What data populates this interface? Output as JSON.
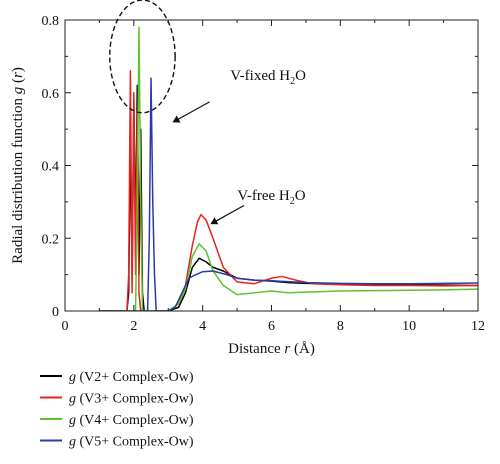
{
  "chart_data": {
    "type": "line",
    "xlabel_prefix": "Distance ",
    "xlabel_var": "r",
    "xlabel_unit": " (Å)",
    "ylabel_prefix": "Radial distribution function ",
    "ylabel_func": "g",
    "ylabel_var": "r",
    "xlim": [
      0,
      12
    ],
    "ylim": [
      0,
      0.8
    ],
    "xticks": [
      "0",
      "2",
      "4",
      "6",
      "8",
      "10",
      "12"
    ],
    "yticks": [
      "0",
      "0.2",
      "0.4",
      "0.6",
      "0.8"
    ],
    "grid": false,
    "legend_position": "below",
    "annotations": [
      {
        "text_main": "V-fixed H",
        "text_sub": "2",
        "text_tail": "O",
        "x": 5.9,
        "y": 0.635,
        "arrow_from": [
          4.2,
          0.575
        ],
        "arrow_to": [
          3.15,
          0.52
        ],
        "ellipse": {
          "cx": 2.25,
          "cy": 0.7,
          "rx": 0.95,
          "ry": 0.155
        }
      },
      {
        "text_main": "V-free H",
        "text_sub": "2",
        "text_tail": "O",
        "x": 6.0,
        "y": 0.305,
        "arrow_from": [
          5.2,
          0.29
        ],
        "arrow_to": [
          4.25,
          0.24
        ]
      }
    ],
    "series": [
      {
        "name": "g (V2+ Complex-Ow)",
        "legend_func": "g",
        "legend_rest": " (V2+ Complex-Ow)",
        "color": "#000000",
        "points": [
          [
            1.0,
            0
          ],
          [
            1.8,
            0
          ],
          [
            1.85,
            0.05
          ],
          [
            1.9,
            0.46
          ],
          [
            1.95,
            0.1
          ],
          [
            2.0,
            0.58
          ],
          [
            2.05,
            0.2
          ],
          [
            2.1,
            0.62
          ],
          [
            2.15,
            0.1
          ],
          [
            2.2,
            0.5
          ],
          [
            2.25,
            0.05
          ],
          [
            2.3,
            0
          ],
          [
            3.0,
            0
          ],
          [
            3.3,
            0.01
          ],
          [
            3.5,
            0.05
          ],
          [
            3.7,
            0.12
          ],
          [
            3.9,
            0.145
          ],
          [
            4.1,
            0.135
          ],
          [
            4.3,
            0.12
          ],
          [
            4.6,
            0.11
          ],
          [
            5.0,
            0.09
          ],
          [
            5.5,
            0.085
          ],
          [
            6.0,
            0.082
          ],
          [
            6.5,
            0.078
          ],
          [
            7.0,
            0.076
          ],
          [
            8.0,
            0.074
          ],
          [
            9.0,
            0.073
          ],
          [
            10.0,
            0.072
          ],
          [
            11.0,
            0.071
          ],
          [
            12.0,
            0.07
          ]
        ]
      },
      {
        "name": "g (V3+ Complex-Ow)",
        "legend_func": "g",
        "legend_rest": " (V3+ Complex-Ow)",
        "color": "#e8231f",
        "points": [
          [
            1.0,
            0
          ],
          [
            1.8,
            0
          ],
          [
            1.85,
            0.1
          ],
          [
            1.9,
            0.66
          ],
          [
            1.95,
            0.05
          ],
          [
            2.0,
            0.6
          ],
          [
            2.05,
            0.1
          ],
          [
            2.1,
            0.55
          ],
          [
            2.15,
            0.05
          ],
          [
            2.2,
            0
          ],
          [
            3.0,
            0
          ],
          [
            3.3,
            0.02
          ],
          [
            3.5,
            0.07
          ],
          [
            3.7,
            0.18
          ],
          [
            3.85,
            0.245
          ],
          [
            3.95,
            0.265
          ],
          [
            4.1,
            0.25
          ],
          [
            4.3,
            0.2
          ],
          [
            4.6,
            0.12
          ],
          [
            5.0,
            0.08
          ],
          [
            5.5,
            0.075
          ],
          [
            6.0,
            0.09
          ],
          [
            6.3,
            0.095
          ],
          [
            6.7,
            0.085
          ],
          [
            7.2,
            0.075
          ],
          [
            8.0,
            0.072
          ],
          [
            9.0,
            0.07
          ],
          [
            10.0,
            0.07
          ],
          [
            11.0,
            0.069
          ],
          [
            12.0,
            0.07
          ]
        ]
      },
      {
        "name": "g (V4+ Complex-Ow)",
        "legend_func": "g",
        "legend_rest": " (V4+ Complex-Ow)",
        "color": "#5ec22e",
        "points": [
          [
            1.0,
            0
          ],
          [
            2.05,
            0
          ],
          [
            2.1,
            0.3
          ],
          [
            2.15,
            0.78
          ],
          [
            2.2,
            0.3
          ],
          [
            2.25,
            0
          ],
          [
            3.0,
            0
          ],
          [
            3.3,
            0.02
          ],
          [
            3.5,
            0.06
          ],
          [
            3.7,
            0.15
          ],
          [
            3.9,
            0.185
          ],
          [
            4.1,
            0.165
          ],
          [
            4.3,
            0.11
          ],
          [
            4.6,
            0.07
          ],
          [
            5.0,
            0.045
          ],
          [
            5.5,
            0.05
          ],
          [
            6.0,
            0.055
          ],
          [
            6.5,
            0.05
          ],
          [
            7.0,
            0.052
          ],
          [
            8.0,
            0.055
          ],
          [
            9.0,
            0.056
          ],
          [
            10.0,
            0.057
          ],
          [
            11.0,
            0.058
          ],
          [
            12.0,
            0.06
          ]
        ]
      },
      {
        "name": "g (V5+ Complex-Ow)",
        "legend_func": "g",
        "legend_rest": " (V5+ Complex-Ow)",
        "color": "#2b3aa8",
        "points": [
          [
            1.0,
            0
          ],
          [
            2.4,
            0
          ],
          [
            2.45,
            0.2
          ],
          [
            2.5,
            0.64
          ],
          [
            2.55,
            0.3
          ],
          [
            2.6,
            0.1
          ],
          [
            2.65,
            0
          ],
          [
            3.0,
            0
          ],
          [
            3.2,
            0.01
          ],
          [
            3.4,
            0.05
          ],
          [
            3.6,
            0.09
          ],
          [
            3.8,
            0.1
          ],
          [
            4.0,
            0.108
          ],
          [
            4.3,
            0.11
          ],
          [
            4.7,
            0.1
          ],
          [
            5.0,
            0.09
          ],
          [
            5.5,
            0.085
          ],
          [
            6.0,
            0.083
          ],
          [
            7.0,
            0.078
          ],
          [
            8.0,
            0.076
          ],
          [
            9.0,
            0.075
          ],
          [
            10.0,
            0.075
          ],
          [
            11.0,
            0.076
          ],
          [
            12.0,
            0.077
          ]
        ]
      }
    ]
  }
}
